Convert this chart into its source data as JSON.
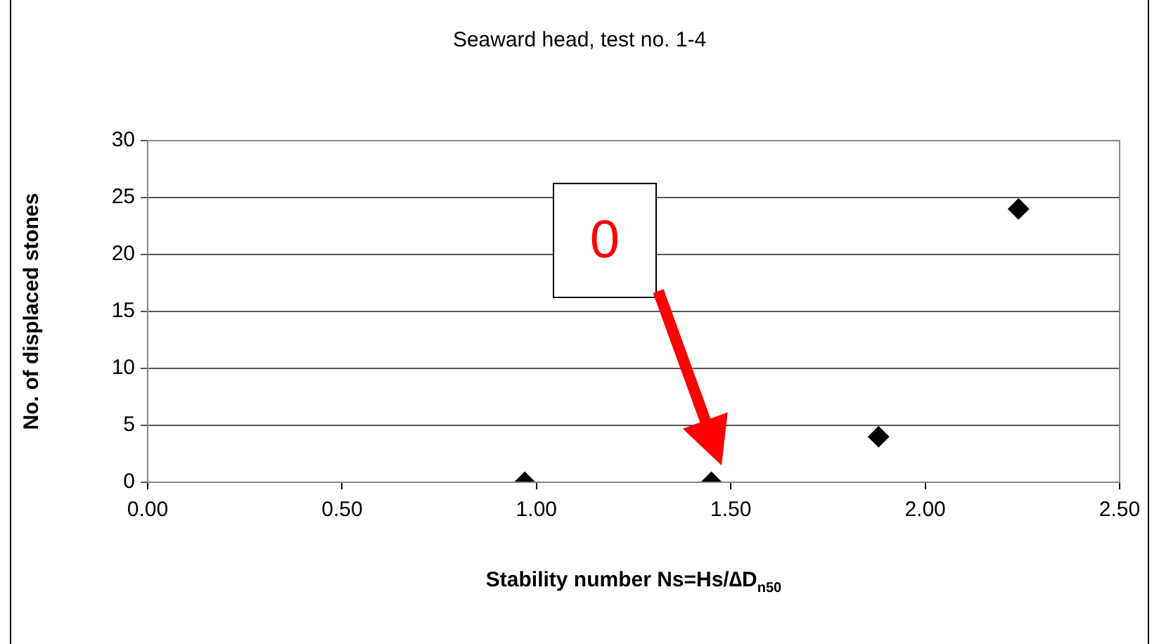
{
  "chart_data": {
    "type": "scatter",
    "title": "Seaward head, test no. 1-4",
    "xlabel": "Stability number Ns=Hs/∆D$_{n50}$",
    "ylabel": "No. of displaced stones",
    "x": [
      0.97,
      1.45,
      1.88,
      2.24
    ],
    "series": [
      {
        "color": "#000000",
        "values": [
          0,
          0,
          4,
          24
        ]
      }
    ],
    "xlim": [
      0,
      2.5
    ],
    "xticks": [
      {
        "value": 0,
        "label": "0.00"
      },
      {
        "value": 0.5,
        "label": "0.50"
      },
      {
        "value": 1,
        "label": "1.00"
      },
      {
        "value": 1.5,
        "label": "1.50"
      },
      {
        "value": 2,
        "label": "2.00"
      },
      {
        "value": 2.5,
        "label": "2.50"
      }
    ],
    "ylim": [
      0,
      30
    ],
    "yticks": [
      0,
      5,
      10,
      15,
      20,
      25,
      30
    ],
    "grid": "y",
    "legend": false,
    "marker": "diamond",
    "annotations": [
      "0"
    ]
  }
}
